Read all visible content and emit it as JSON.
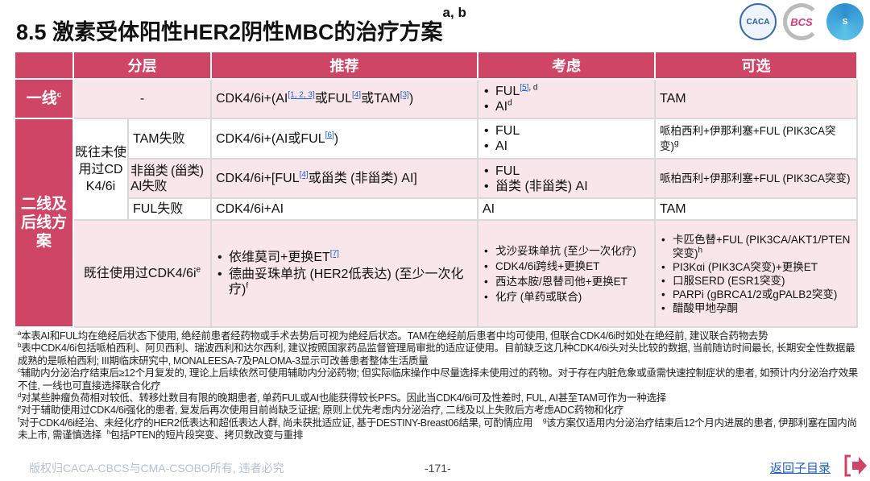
{
  "title": "8.5 激素受体阳性HER2阴性MBC的治疗方案",
  "title_sup": "a, b",
  "logos": [
    "CACA",
    "BCS",
    "CSCO"
  ],
  "headers": [
    "分层",
    "推荐",
    "考虑",
    "可选"
  ],
  "first_line": {
    "label": "一线",
    "sup": "c",
    "strat": "-",
    "rec_pre": "CDK4/6i+(AI",
    "rec_ref1": "[1, 2, 3]",
    "rec_mid": "或FUL",
    "rec_ref2": "[4]",
    "rec_mid2": "或TAM",
    "rec_ref3": "[3]",
    "rec_post": ")",
    "consider": [
      {
        "text": "FUL",
        "ref": "[5]",
        "sup": ", d"
      },
      {
        "text": "AI",
        "sup": "d"
      }
    ],
    "optional": "TAM"
  },
  "second_line": {
    "label": "二线及后线方案",
    "group": "既往未使用过CDK4/6i",
    "rows": [
      {
        "sub": "TAM失败",
        "rec_pre": "CDK4/6i+(AI或FUL",
        "rec_ref": "[6]",
        "rec_post": ")",
        "consider": [
          "FUL",
          "AI"
        ],
        "optional": "哌柏西利+伊那利塞+FUL (PIK3CA突变)",
        "optional_sup": "g"
      },
      {
        "sub": "非甾类 (甾类) AI失败",
        "rec_pre": "CDK4/6i+[FUL",
        "rec_ref": "[4]",
        "rec_post": "或甾类 (非甾类) AI]",
        "consider": [
          "FUL",
          "甾类 (非甾类) AI"
        ],
        "optional": "哌柏西利+伊那利塞+FUL (PIK3CA突变)"
      },
      {
        "sub": "FUL失败",
        "rec_pre": "CDK4/6i+AI",
        "consider_text": "AI",
        "optional": "TAM"
      }
    ],
    "prior": {
      "label": "既往使用过CDK4/6i",
      "sup": "e",
      "rec": [
        {
          "text": "依维莫司+更换ET",
          "ref": "[7]"
        },
        {
          "text": "德曲妥珠单抗 (HER2低表达) (至少一次化疗)",
          "sup": "f"
        }
      ],
      "consider": [
        "戈沙妥珠单抗 (至少一次化疗)",
        "CDK4/6i跨线+更换ET",
        "西达本胺/恩替司他+更换ET",
        "化疗 (单药或联合)"
      ],
      "optional": [
        {
          "text": "卡匹色替+FUL (PIK3CA/AKT1/PTEN突变)",
          "sup": "h"
        },
        {
          "text": "PI3Kαi (PIK3CA突变)+更换ET"
        },
        {
          "text": "口服SERD (ESR1突变)"
        },
        {
          "text": "PARPi (gBRCA1/2或gPALB2突变)"
        },
        {
          "text": "醋酸甲地孕酮"
        }
      ]
    }
  },
  "notes": [
    {
      "m": "a",
      "t": "本表AI和FUL均在绝经后状态下使用, 绝经前患者经药物或手术去势后可视为绝经后状态。TAM在绝经前后患者中均可使用, 但联合CDK4/6i时如处在绝经前, 建议联合药物去势"
    },
    {
      "m": "b",
      "t": "表中CDK4/6i包括哌柏西利、阿贝西利、瑞波西利和达尔西利, 建议按照国家药品监督管理局审批的适应证使用。目前缺乏这几种CDK4/6i头对头比较的数据, 当前随访时间最长, 长期安全性数据最成熟的是哌柏西利; III期临床研究中, MONALEESA-7及PALOMA-3显示可改善患者整体生活质量"
    },
    {
      "m": "c",
      "t": "辅助内分泌治疗结束后≥12个月复发的, 理论上后续依然可使用辅助内分泌药物; 但实际临床操作中尽量选择未使用过的药物。对于存在内脏危象或亟需快速控制症状的患者, 如预计内分泌治疗效果不佳, 一线也可直接选择联合化疗"
    },
    {
      "m": "d",
      "t": "对某些肿瘤负荷相对较低、转移灶数目有限的晚期患者, 单药FUL或AI也能获得较长PFS。因此当CDK4/6i可及性差时, FUL, AI甚至TAM可作为一种选择"
    },
    {
      "m": "e",
      "t": "对于辅助使用过CDK4/6i强化的患者, 复发后再次使用目前尚缺乏证据; 原则上优先考虑内分泌治疗, 二线及以上失败后方考虑ADC药物和化疗"
    },
    {
      "m": "f",
      "t": "对于CDK4/6i经治、未经化疗的HER2低表达和超低表达人群, 尚未获批适应证, 基于DESTINY-Breast06结果, 可酌情应用"
    },
    {
      "m": "g",
      "t": "该方案仅适用内分泌治疗结束后12个月内进展的患者, 伊那利塞在国内尚未上市, 需谨慎选择"
    },
    {
      "m": "h",
      "t": "包括PTEN的短片段突变、拷贝数改变与重排"
    }
  ],
  "footer": {
    "copyright": "版权归CACA-CBCS与CMA-CSOBO所有, 违者必究",
    "page": "-171-",
    "back": "返回子目录"
  },
  "colors": {
    "header": "#cf4565",
    "row_pink": "#f9e6ea",
    "link": "#2060c0"
  }
}
